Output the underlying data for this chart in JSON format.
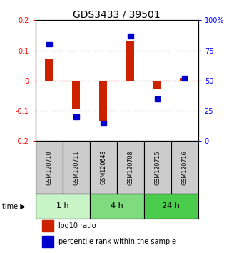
{
  "title": "GDS3433 / 39501",
  "samples": [
    "GSM120710",
    "GSM120711",
    "GSM120648",
    "GSM120708",
    "GSM120715",
    "GSM120716"
  ],
  "log10_ratio": [
    0.072,
    -0.092,
    -0.132,
    0.13,
    -0.028,
    0.01
  ],
  "percentile_rank": [
    80,
    20,
    15,
    87,
    35,
    52
  ],
  "time_groups": [
    {
      "label": "1 h",
      "start": 0,
      "end": 2,
      "color": "#c8f4c8"
    },
    {
      "label": "4 h",
      "start": 2,
      "end": 4,
      "color": "#7edc7e"
    },
    {
      "label": "24 h",
      "start": 4,
      "end": 6,
      "color": "#4ccc4c"
    }
  ],
  "bar_color": "#cc2200",
  "dot_color": "#0000cc",
  "left_ylim": [
    -0.2,
    0.2
  ],
  "right_ylim": [
    0,
    100
  ],
  "left_yticks": [
    -0.2,
    -0.1,
    0.0,
    0.1,
    0.2
  ],
  "right_yticks": [
    0,
    25,
    50,
    75,
    100
  ],
  "right_yticklabels": [
    "0",
    "25",
    "50",
    "75",
    "100%"
  ],
  "left_yticklabels": [
    "-0.2",
    "-0.1",
    "0",
    "0.1",
    "0.2"
  ],
  "hline_dotted": [
    -0.1,
    0.1
  ],
  "hline_red": 0.0,
  "sample_box_color": "#cccccc",
  "title_fontsize": 10,
  "legend_red_label": "log10 ratio",
  "legend_blue_label": "percentile rank within the sample",
  "bar_width": 0.28,
  "sq_size": 0.2
}
